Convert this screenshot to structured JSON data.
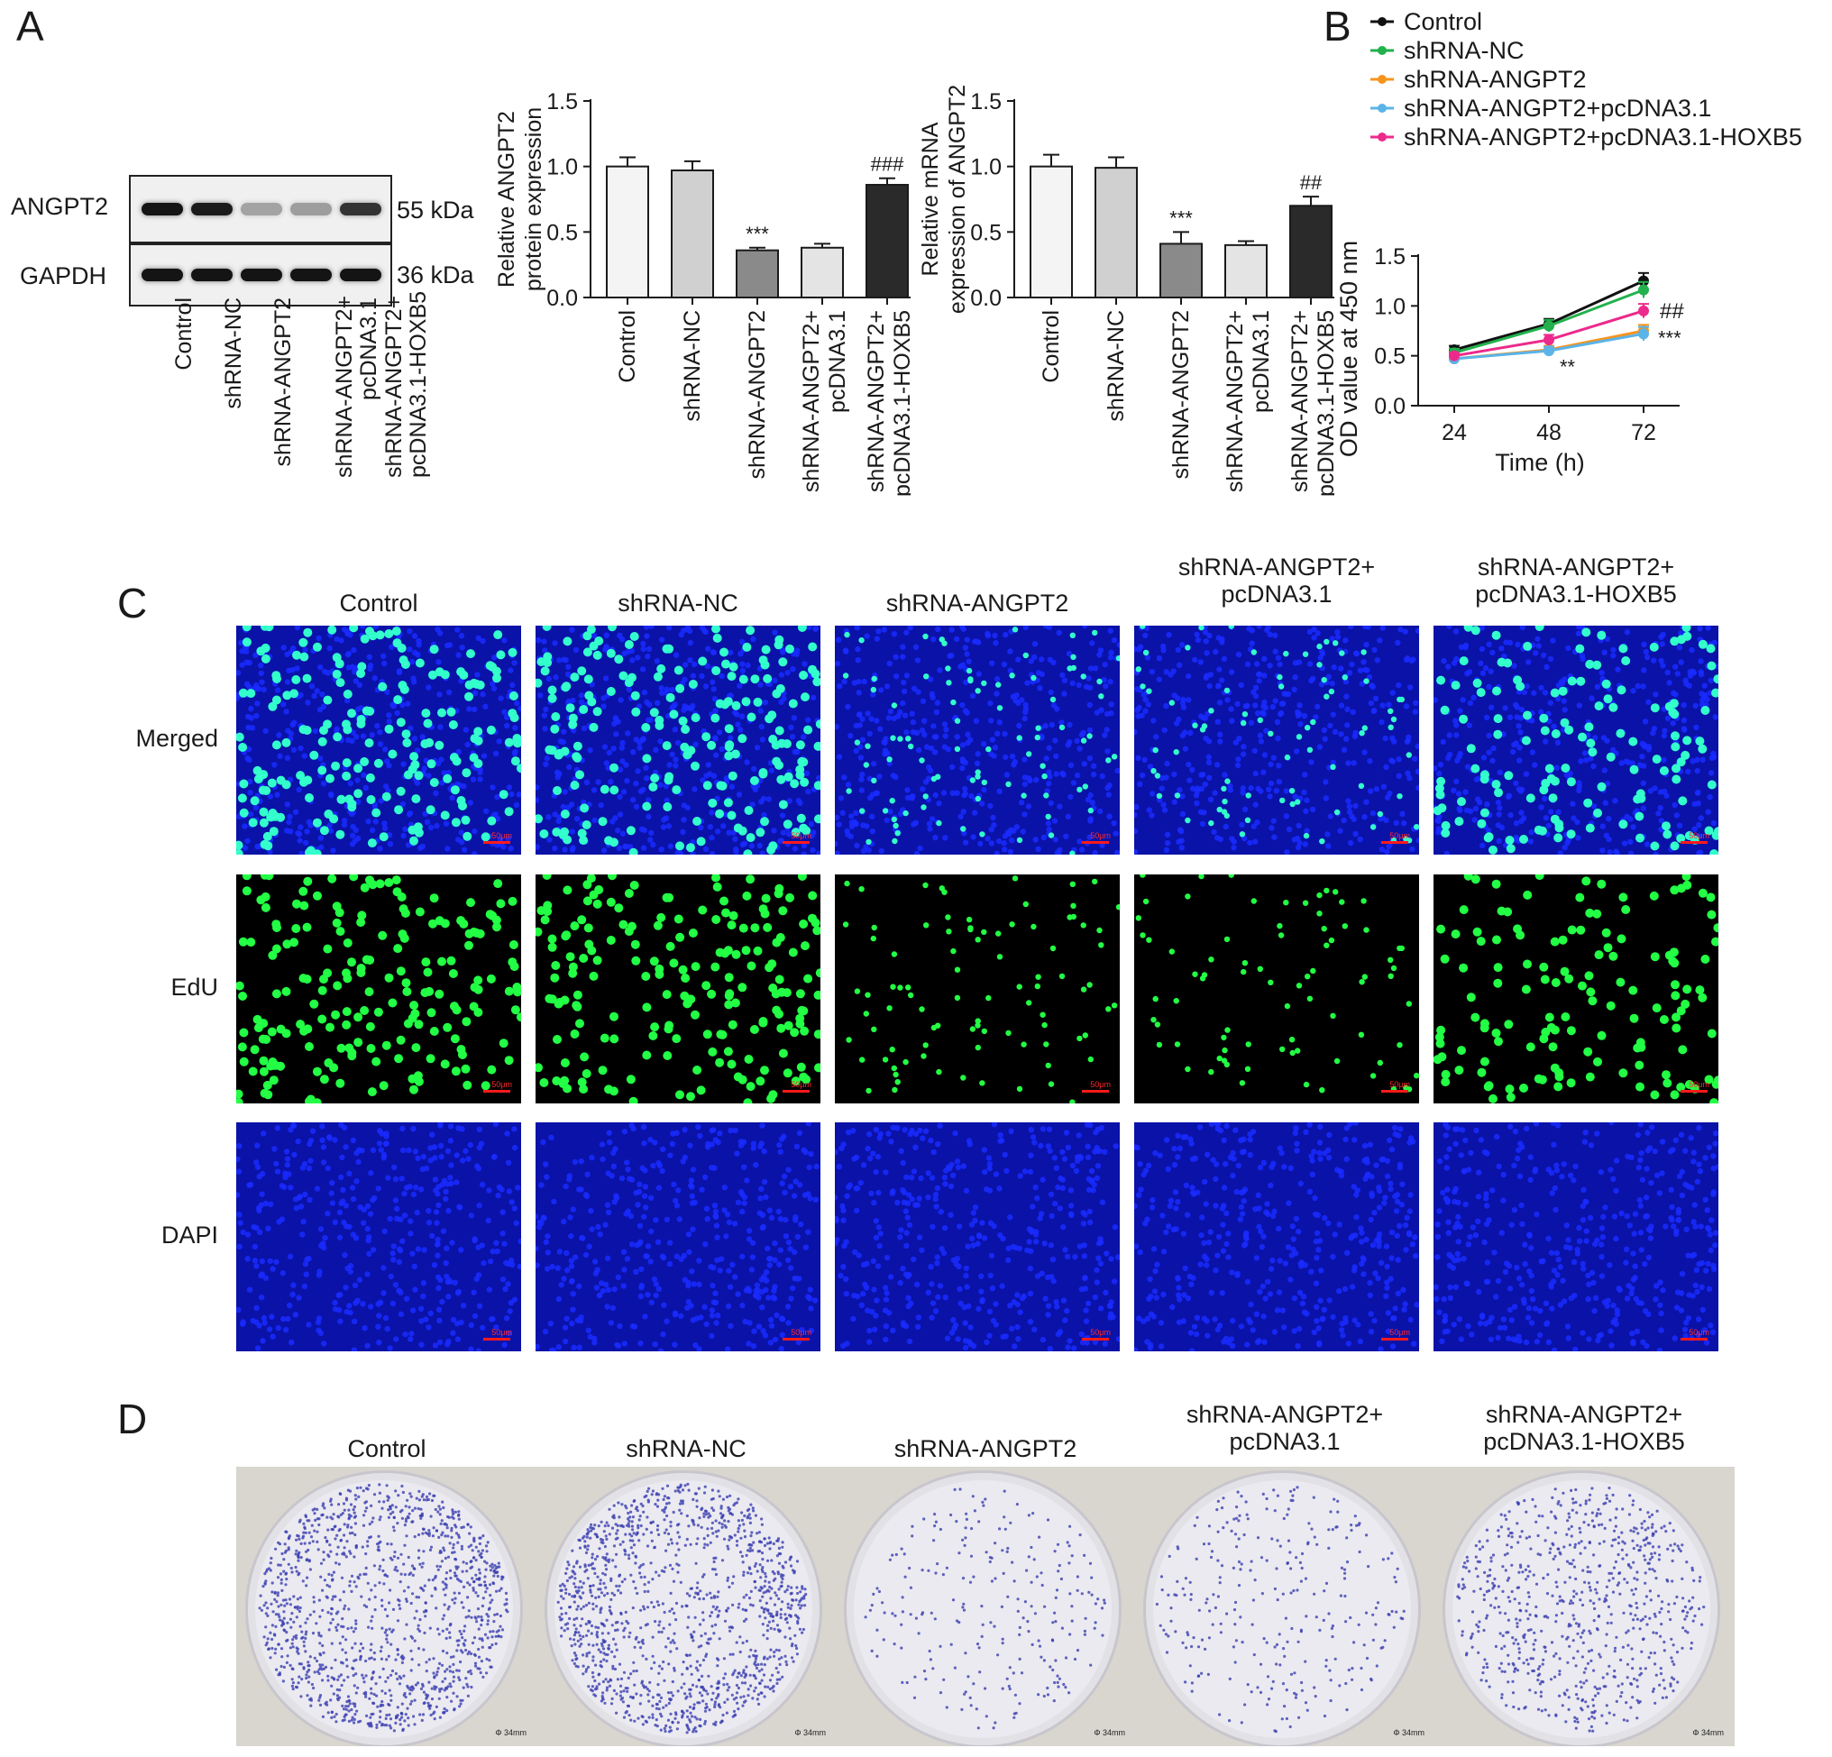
{
  "panels": {
    "A": "A",
    "B": "B",
    "C": "C",
    "D": "D"
  },
  "groups": [
    "Control",
    "shRNA-NC",
    "shRNA-ANGPT2",
    "shRNA-ANGPT2+\npcDNA3.1",
    "shRNA-ANGPT2+\npcDNA3.1-HOXB5"
  ],
  "western": {
    "rows": [
      {
        "label": "ANGPT2",
        "kda": "55 kDa",
        "intensity": [
          1.0,
          0.97,
          0.35,
          0.38,
          0.86
        ]
      },
      {
        "label": "GAPDH",
        "kda": "36 kDa",
        "intensity": [
          1.0,
          1.0,
          1.0,
          1.0,
          1.0
        ]
      }
    ]
  },
  "chart_data": [
    {
      "type": "bar",
      "ylabel": "Relative ANGPT2\nprotein expression",
      "categories": [
        "Control",
        "shRNA-NC",
        "shRNA-ANGPT2",
        "shRNA-ANGPT2+\npcDNA3.1",
        "shRNA-ANGPT2+\npcDNA3.1-HOXB5"
      ],
      "values": [
        1.0,
        0.97,
        0.36,
        0.38,
        0.86
      ],
      "errors": [
        0.07,
        0.07,
        0.02,
        0.03,
        0.05
      ],
      "annotations": [
        "",
        "",
        "***",
        "",
        "###"
      ],
      "ylim": [
        0,
        1.5
      ],
      "yticks": [
        "0.0",
        "0.5",
        "1.0",
        "1.5"
      ]
    },
    {
      "type": "bar",
      "ylabel": "Relative mRNA\nexpression of ANGPT2",
      "categories": [
        "Control",
        "shRNA-NC",
        "shRNA-ANGPT2",
        "shRNA-ANGPT2+\npcDNA3.1",
        "shRNA-ANGPT2+\npcDNA3.1-HOXB5"
      ],
      "values": [
        1.0,
        0.99,
        0.41,
        0.4,
        0.7
      ],
      "errors": [
        0.09,
        0.08,
        0.09,
        0.03,
        0.07
      ],
      "annotations": [
        "",
        "",
        "***",
        "",
        "##"
      ],
      "ylim": [
        0,
        1.5
      ],
      "yticks": [
        "0.0",
        "0.5",
        "1.0",
        "1.5"
      ]
    },
    {
      "type": "line",
      "xlabel": "Time (h)",
      "ylabel": "OD value at 450 nm",
      "x": [
        24,
        48,
        72
      ],
      "xticks": [
        "24",
        "48",
        "72"
      ],
      "ylim": [
        0,
        1.5
      ],
      "yticks": [
        "0.0",
        "0.5",
        "1.0",
        "1.5"
      ],
      "legend_position": "top",
      "series": [
        {
          "name": "Control",
          "values": [
            0.56,
            0.82,
            1.25
          ],
          "errors": [
            0.04,
            0.05,
            0.08
          ],
          "color": "#111111"
        },
        {
          "name": "shRNA-NC",
          "values": [
            0.53,
            0.8,
            1.16
          ],
          "errors": [
            0.04,
            0.06,
            0.08
          ],
          "color": "#22b14c"
        },
        {
          "name": "shRNA-ANGPT2",
          "values": [
            0.47,
            0.56,
            0.75
          ],
          "errors": [
            0.03,
            0.04,
            0.06
          ],
          "color": "#f7941d"
        },
        {
          "name": "shRNA-ANGPT2+pcDNA3.1",
          "values": [
            0.47,
            0.55,
            0.72
          ],
          "errors": [
            0.03,
            0.04,
            0.07
          ],
          "color": "#5ab4e8"
        },
        {
          "name": "shRNA-ANGPT2+pcDNA3.1-HOXB5",
          "values": [
            0.5,
            0.66,
            0.95
          ],
          "errors": [
            0.03,
            0.05,
            0.07
          ],
          "color": "#ec2a8c"
        }
      ],
      "annotations": [
        {
          "text": "##",
          "at": 72
        },
        {
          "text": "***",
          "at": 72
        },
        {
          "text": "**",
          "at": 48
        }
      ]
    }
  ],
  "edu": {
    "row_labels": [
      "Merged",
      "EdU",
      "DAPI"
    ],
    "column_titles": [
      "Control",
      "shRNA-NC",
      "shRNA-ANGPT2",
      "shRNA-ANGPT2+\npcDNA3.1",
      "shRNA-ANGPT2+\npcDNA3.1-HOXB5"
    ],
    "scale_label": "50μm",
    "green_density": [
      1.0,
      1.0,
      0.45,
      0.4,
      0.7
    ],
    "colors": {
      "dapi": "#1a2cff",
      "edu": "#22ff44",
      "merged_edu": "#33ffcc"
    }
  },
  "colony": {
    "column_titles": [
      "Control",
      "shRNA-NC",
      "shRNA-ANGPT2",
      "shRNA-ANGPT2+\npcDNA3.1",
      "shRNA-ANGPT2+\npcDNA3.1-HOXB5"
    ],
    "dish_label": "Φ 34mm",
    "colony_density": [
      1.0,
      1.0,
      0.15,
      0.18,
      0.45
    ],
    "colony_color": "#3b3fb0"
  }
}
